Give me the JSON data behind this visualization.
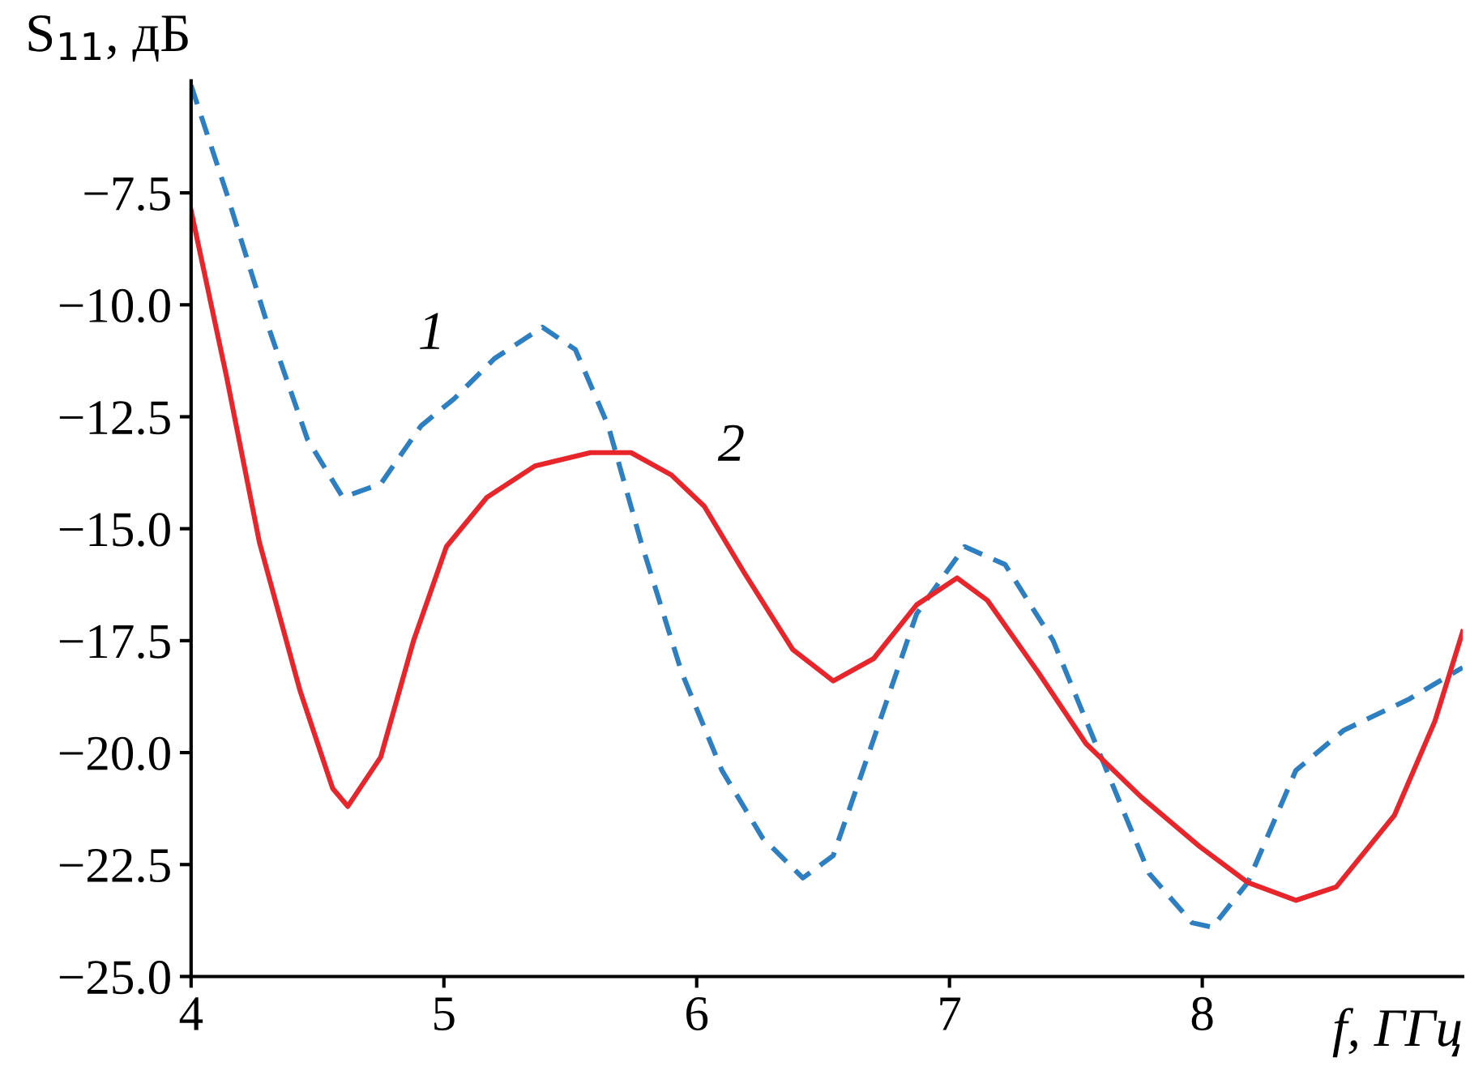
{
  "chart_data": {
    "type": "line",
    "ylabel": "S$_{11}$, дБ",
    "xlabel": "f, ГГц",
    "xlim": [
      4,
      9.03
    ],
    "xticks": [
      4,
      5,
      6,
      7,
      8
    ],
    "ylim": [
      -25,
      -5
    ],
    "yticks": [
      {
        "value": -25,
        "label": "−25.0"
      },
      {
        "value": -22.5,
        "label": "−22.5"
      },
      {
        "value": -20,
        "label": "−20.0"
      },
      {
        "value": -17.5,
        "label": "−17.5"
      },
      {
        "value": -15,
        "label": "−15.0"
      },
      {
        "value": -12.5,
        "label": "−12.5"
      },
      {
        "value": -10,
        "label": "−10.0"
      },
      {
        "value": -7.5,
        "label": "−7.5"
      }
    ],
    "grid": false,
    "series": [
      {
        "name": "1",
        "color": "#2e7fc1",
        "line_style": "dashed",
        "x": [
          4.0,
          4.14,
          4.3,
          4.46,
          4.6,
          4.75,
          4.91,
          5.04,
          5.2,
          5.39,
          5.52,
          5.65,
          5.78,
          5.94,
          6.1,
          6.26,
          6.42,
          6.54,
          6.7,
          6.87,
          7.06,
          7.22,
          7.41,
          7.6,
          7.79,
          7.96,
          8.04,
          8.18,
          8.37,
          8.56,
          8.82,
          9.03
        ],
        "values": [
          -5.1,
          -7.5,
          -10.4,
          -13.0,
          -14.3,
          -14.0,
          -12.7,
          -12.1,
          -11.2,
          -10.5,
          -11.0,
          -12.7,
          -15.3,
          -18.2,
          -20.4,
          -21.9,
          -22.8,
          -22.3,
          -19.7,
          -16.9,
          -15.4,
          -15.8,
          -17.5,
          -20.1,
          -22.7,
          -23.8,
          -23.9,
          -22.9,
          -20.4,
          -19.5,
          -18.8,
          -18.1
        ]
      },
      {
        "name": "2",
        "color": "#e8252a",
        "line_style": "solid",
        "x": [
          4.0,
          4.14,
          4.27,
          4.43,
          4.56,
          4.62,
          4.75,
          4.88,
          5.01,
          5.17,
          5.36,
          5.58,
          5.74,
          5.9,
          6.03,
          6.19,
          6.38,
          6.54,
          6.7,
          6.87,
          7.03,
          7.15,
          7.35,
          7.54,
          7.76,
          7.99,
          8.18,
          8.37,
          8.53,
          8.76,
          8.92,
          9.03
        ],
        "values": [
          -7.9,
          -11.6,
          -15.3,
          -18.6,
          -20.8,
          -21.2,
          -20.1,
          -17.5,
          -15.4,
          -14.3,
          -13.6,
          -13.3,
          -13.3,
          -13.8,
          -14.5,
          -16.0,
          -17.7,
          -18.4,
          -17.9,
          -16.7,
          -16.1,
          -16.6,
          -18.2,
          -19.8,
          -21.0,
          -22.1,
          -22.9,
          -23.3,
          -23.0,
          -21.4,
          -19.3,
          -17.3
        ]
      }
    ]
  }
}
